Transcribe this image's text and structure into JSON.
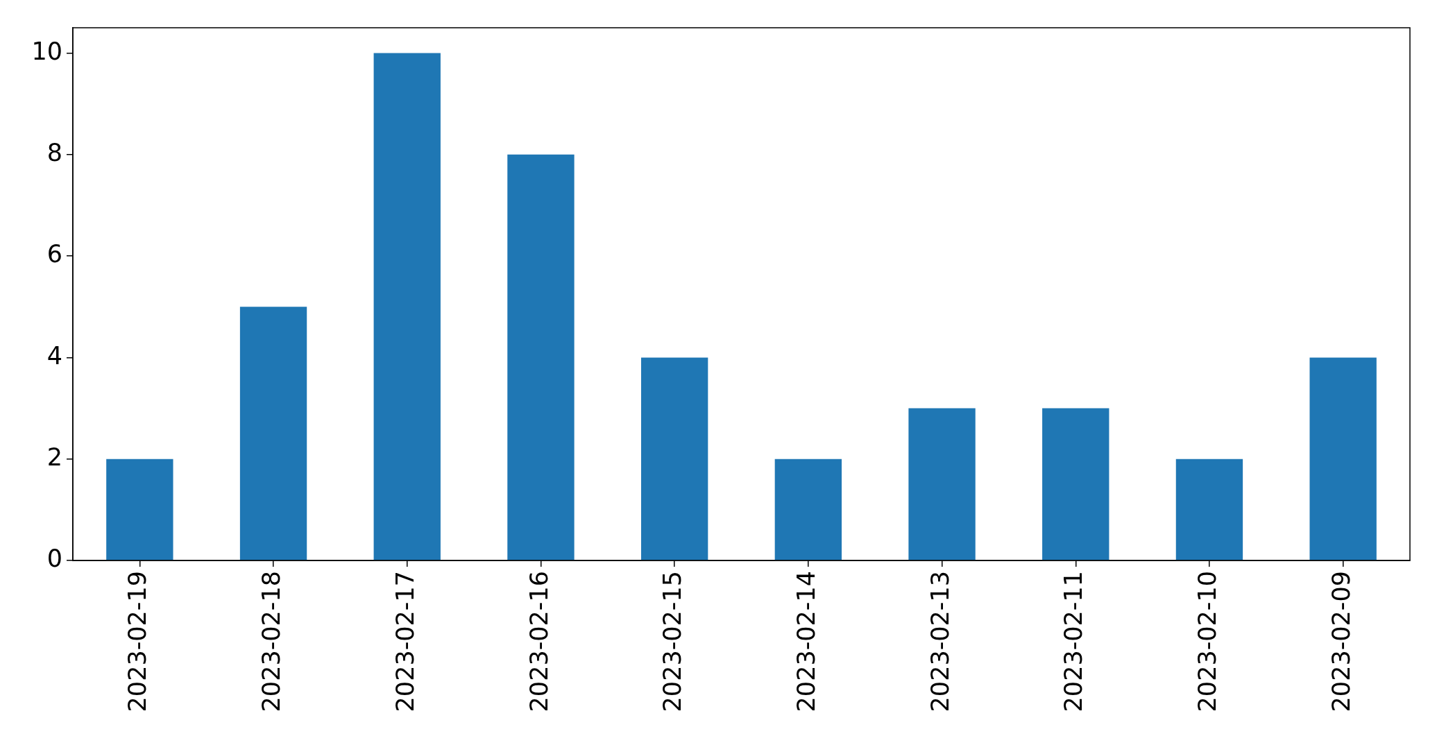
{
  "chart_data": {
    "type": "bar",
    "categories": [
      "2023-02-19",
      "2023-02-18",
      "2023-02-17",
      "2023-02-16",
      "2023-02-15",
      "2023-02-14",
      "2023-02-13",
      "2023-02-11",
      "2023-02-10",
      "2023-02-09"
    ],
    "values": [
      2,
      5,
      10,
      8,
      4,
      2,
      3,
      3,
      2,
      4
    ],
    "color": "#1f77b4",
    "ylim": [
      0,
      10.5
    ],
    "yticks": [
      0,
      2,
      4,
      6,
      8,
      10
    ],
    "grid": false
  }
}
